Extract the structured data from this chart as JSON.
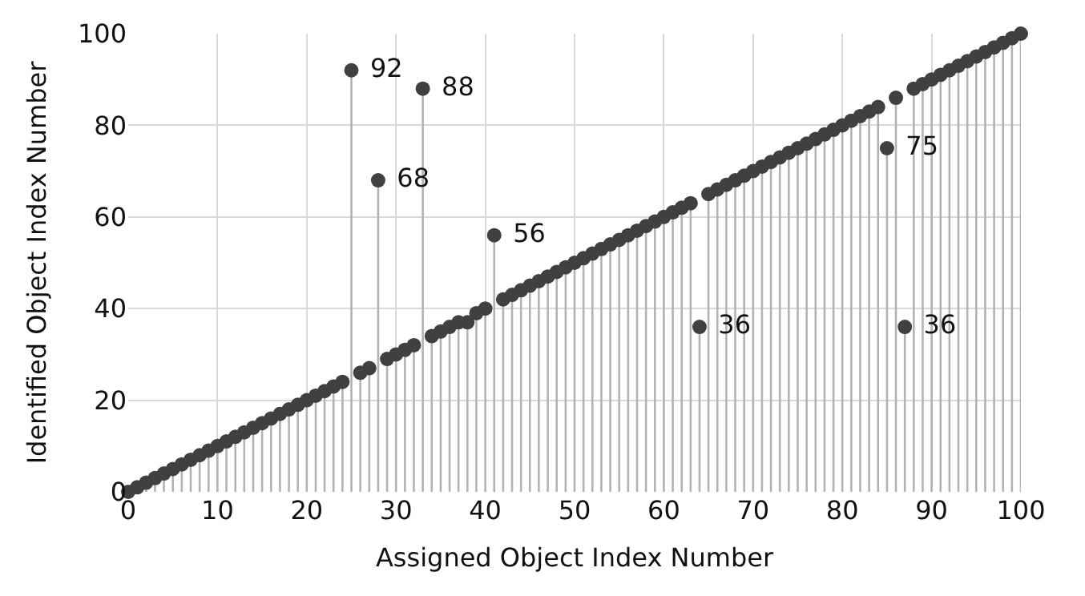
{
  "chart_data": {
    "type": "lollipop",
    "xlabel": "Assigned Object Index Number",
    "ylabel": "Identified Object Index Number",
    "x": [
      0,
      1,
      2,
      3,
      4,
      5,
      6,
      7,
      8,
      9,
      10,
      11,
      12,
      13,
      14,
      15,
      16,
      17,
      18,
      19,
      20,
      21,
      22,
      23,
      24,
      25,
      26,
      27,
      28,
      29,
      30,
      31,
      32,
      33,
      34,
      35,
      36,
      37,
      38,
      39,
      40,
      41,
      42,
      43,
      44,
      45,
      46,
      47,
      48,
      49,
      50,
      51,
      52,
      53,
      54,
      55,
      56,
      57,
      58,
      59,
      60,
      61,
      62,
      63,
      64,
      65,
      66,
      67,
      68,
      69,
      70,
      71,
      72,
      73,
      74,
      75,
      76,
      77,
      78,
      79,
      80,
      81,
      82,
      83,
      84,
      85,
      86,
      87,
      88,
      89,
      90,
      91,
      92,
      93,
      94,
      95,
      96,
      97,
      98,
      99,
      100
    ],
    "series": [
      {
        "color": "#404040",
        "values": [
          0,
          1,
          2,
          3,
          4,
          5,
          6,
          7,
          8,
          9,
          10,
          11,
          12,
          13,
          14,
          15,
          16,
          17,
          18,
          19,
          20,
          21,
          22,
          23,
          24,
          92,
          26,
          27,
          68,
          29,
          30,
          31,
          32,
          88,
          34,
          35,
          36,
          37,
          37,
          39,
          40,
          56,
          42,
          43,
          44,
          45,
          46,
          47,
          48,
          49,
          50,
          51,
          52,
          53,
          54,
          55,
          56,
          57,
          58,
          59,
          60,
          61,
          62,
          63,
          36,
          65,
          66,
          67,
          68,
          69,
          70,
          71,
          72,
          73,
          74,
          75,
          76,
          77,
          78,
          79,
          80,
          81,
          82,
          83,
          84,
          75,
          86,
          36,
          88,
          89,
          90,
          91,
          92,
          93,
          94,
          95,
          96,
          97,
          98,
          99,
          100
        ],
        "value_labels": [
          null,
          null,
          null,
          null,
          null,
          null,
          null,
          null,
          null,
          null,
          null,
          null,
          null,
          null,
          null,
          null,
          null,
          null,
          null,
          null,
          null,
          null,
          null,
          null,
          null,
          "92",
          null,
          null,
          "68",
          null,
          null,
          null,
          null,
          "88",
          null,
          null,
          null,
          null,
          null,
          null,
          null,
          "56",
          null,
          null,
          null,
          null,
          null,
          null,
          null,
          null,
          null,
          null,
          null,
          null,
          null,
          null,
          null,
          null,
          null,
          null,
          null,
          null,
          null,
          null,
          "36",
          null,
          null,
          null,
          null,
          null,
          null,
          null,
          null,
          null,
          null,
          null,
          null,
          null,
          null,
          null,
          null,
          null,
          null,
          null,
          null,
          "75",
          null,
          "36",
          null,
          null,
          null,
          null,
          null,
          null,
          null,
          null,
          null,
          null,
          null,
          null,
          null
        ]
      }
    ],
    "xlim": [
      0,
      100
    ],
    "xticks": [
      0,
      10,
      20,
      30,
      40,
      50,
      60,
      70,
      80,
      90,
      100
    ],
    "ylim": [
      0,
      100
    ],
    "yticks": [
      0,
      20,
      40,
      60,
      80,
      100
    ],
    "grid": true,
    "marker": "circle"
  }
}
